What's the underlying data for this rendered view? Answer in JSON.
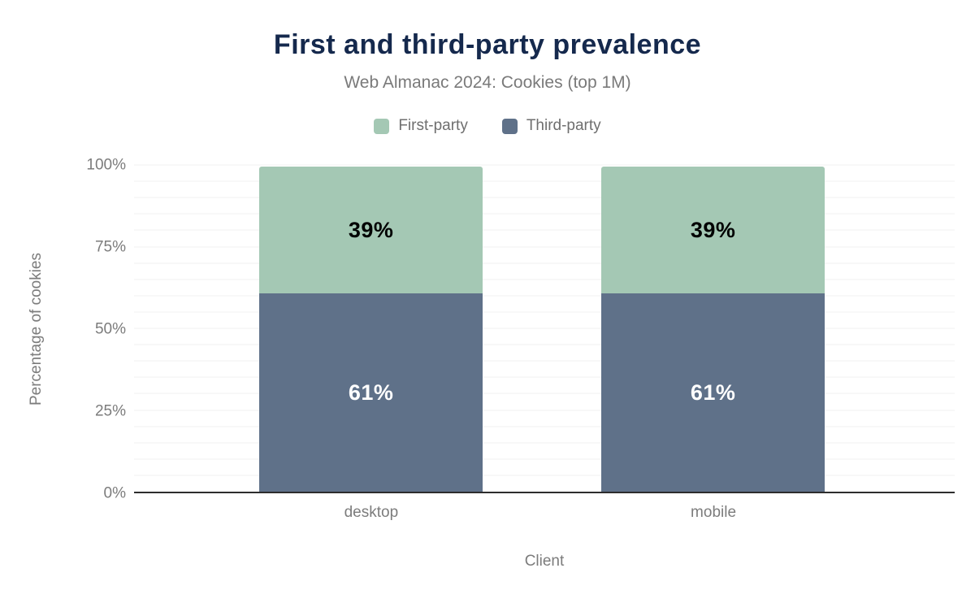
{
  "chart_data": {
    "type": "bar",
    "stacked": true,
    "title": "First and third-party prevalence",
    "subtitle": "Web Almanac 2024: Cookies (top 1M)",
    "xlabel": "Client",
    "ylabel": "Percentage of cookies",
    "categories": [
      "desktop",
      "mobile"
    ],
    "series": [
      {
        "name": "First-party",
        "color": "#a4c8b4",
        "values": [
          39,
          39
        ],
        "data_labels": [
          "39%",
          "39%"
        ],
        "label_color": "#000000",
        "stack": "top"
      },
      {
        "name": "Third-party",
        "color": "#5f7189",
        "values": [
          61,
          61
        ],
        "data_labels": [
          "61%",
          "61%"
        ],
        "label_color": "#ffffff",
        "stack": "bottom"
      }
    ],
    "ylim": [
      0,
      100
    ],
    "y_ticks": [
      {
        "value": 0,
        "label": "0%"
      },
      {
        "value": 25,
        "label": "25%"
      },
      {
        "value": 50,
        "label": "50%"
      },
      {
        "value": 75,
        "label": "75%"
      },
      {
        "value": 100,
        "label": "100%"
      }
    ],
    "grid": {
      "step": 5,
      "color": "#f1f1f1",
      "on": true
    },
    "legend_position": "top",
    "colors": {
      "title": "#15294d",
      "subtitle": "#7a7a7a",
      "axis_text": "#7c7c7c",
      "axis_line": "#2d2d2d",
      "background": "#ffffff"
    }
  }
}
